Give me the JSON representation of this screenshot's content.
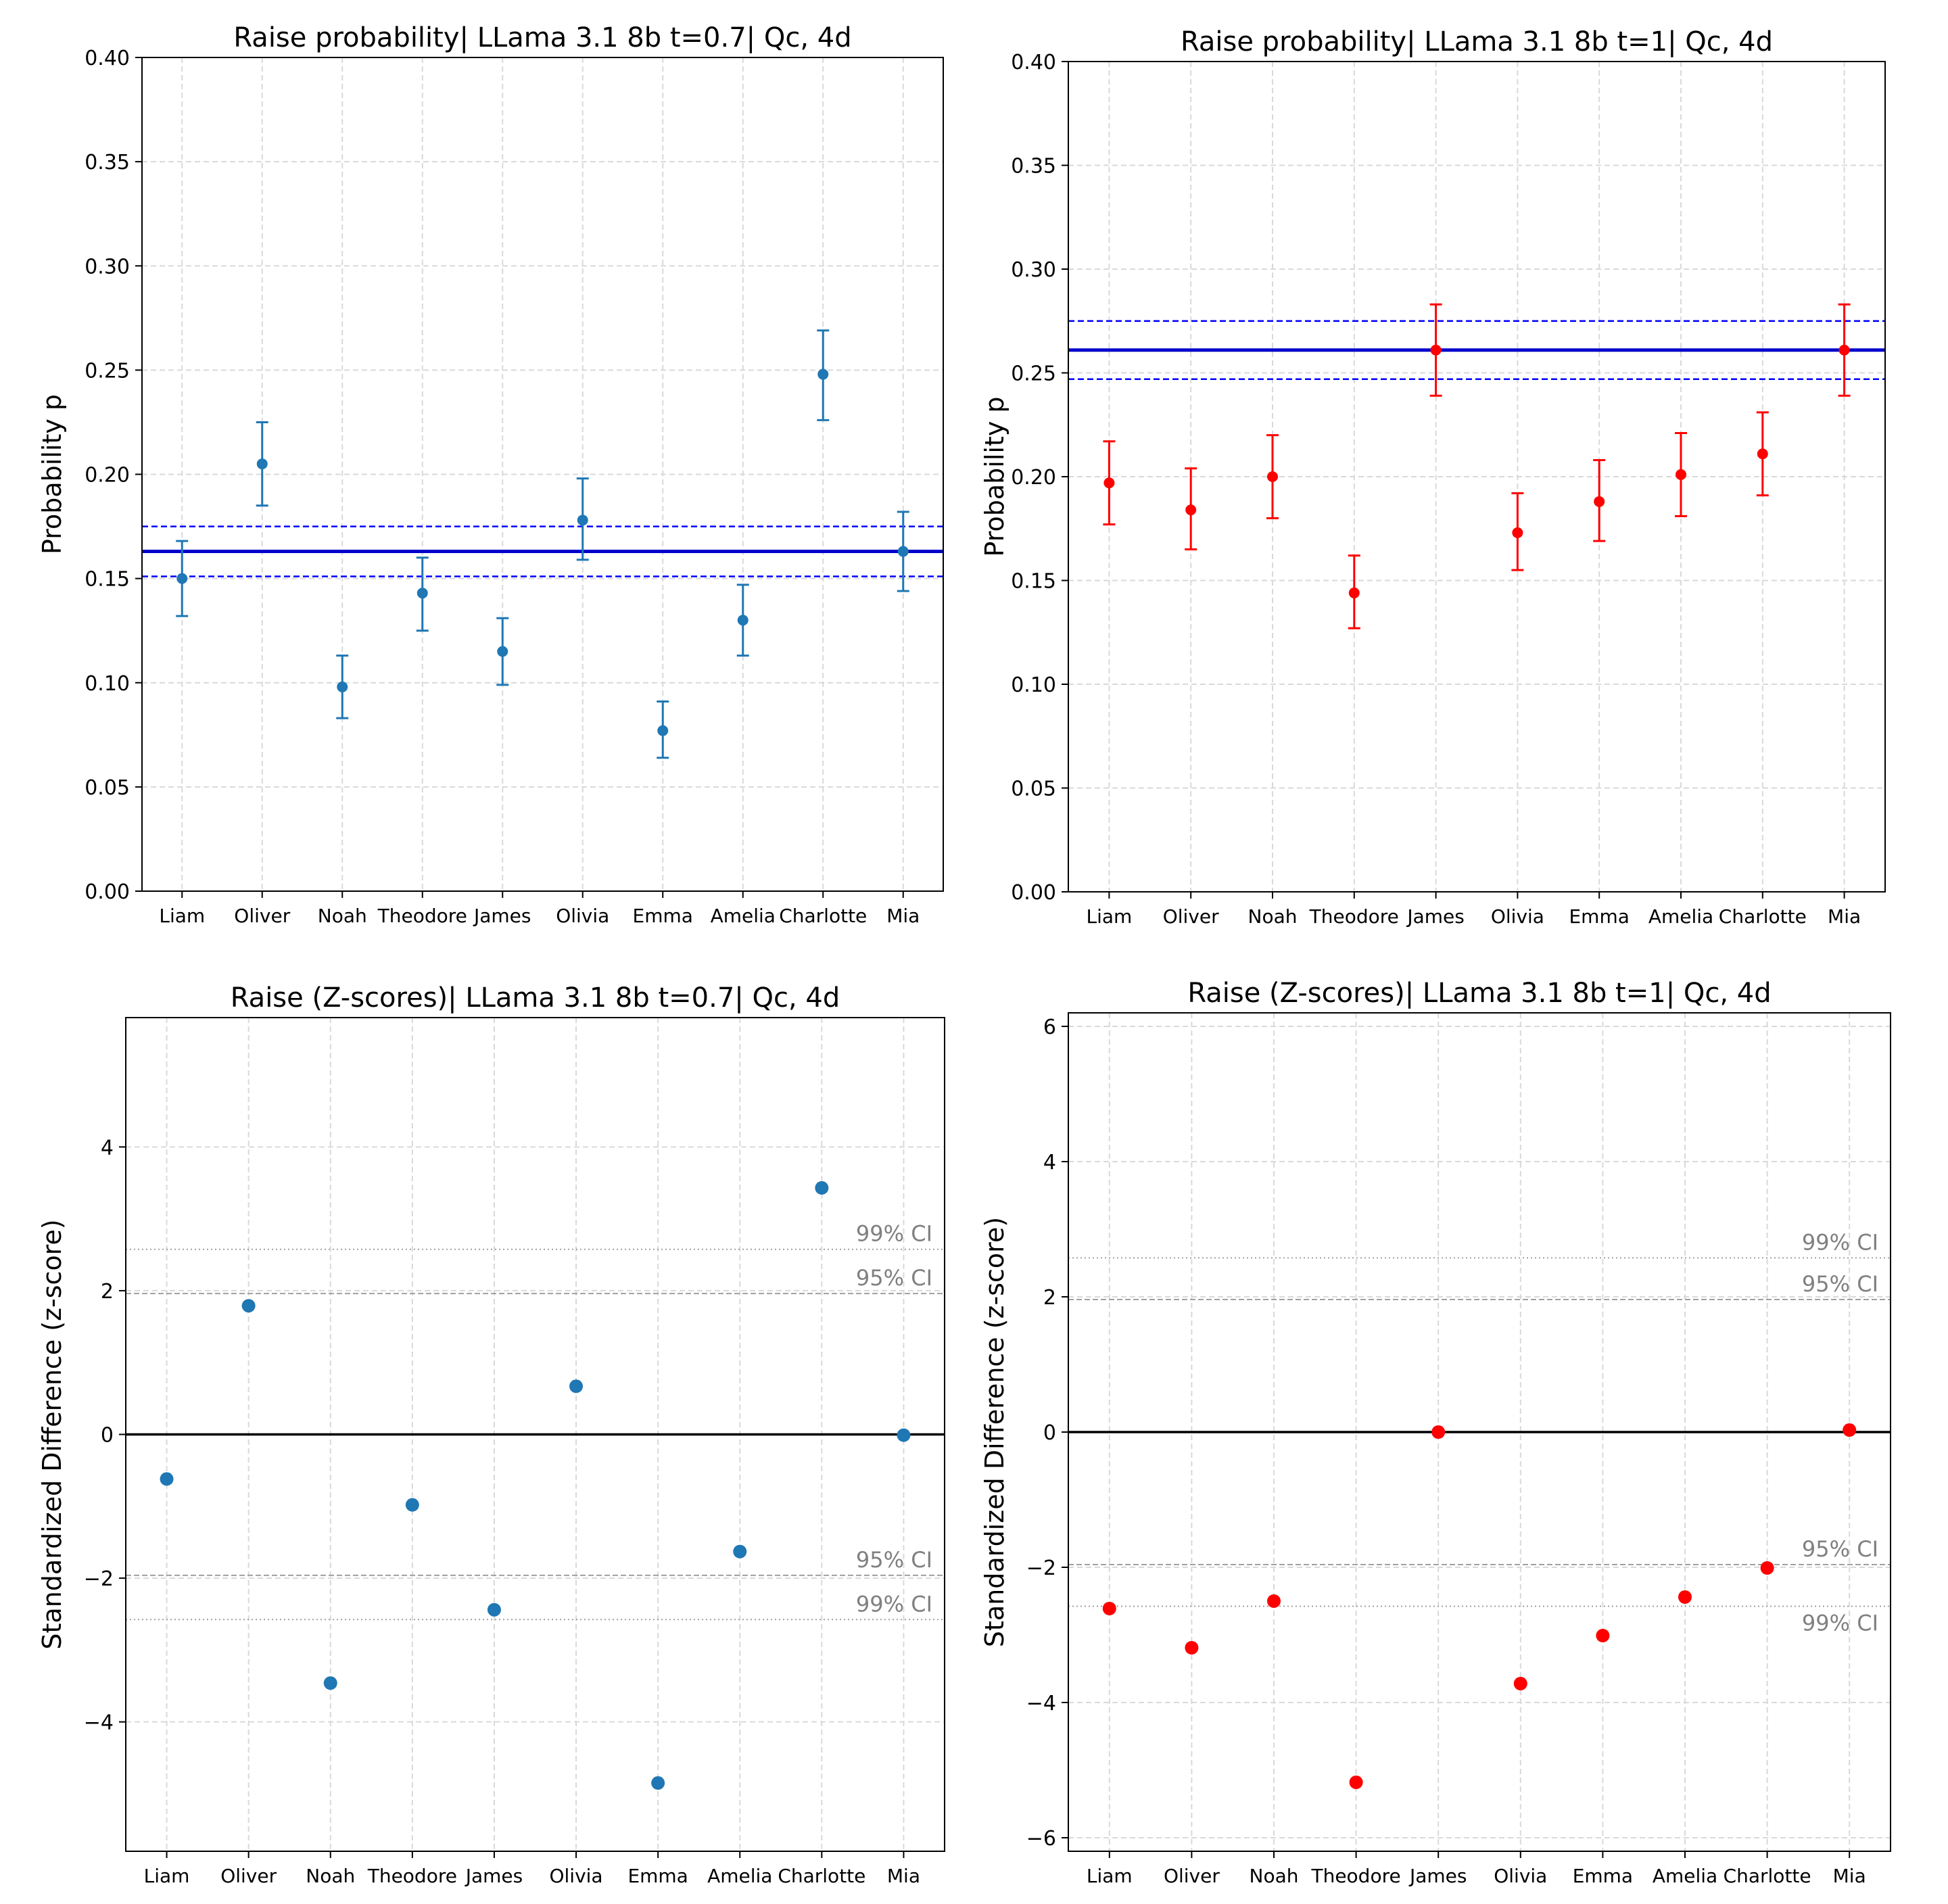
{
  "chart_data": [
    {
      "type": "scatter",
      "variant": "errorbar",
      "title": "Raise probability| LLama 3.1 8b t=0.7| Qc, 4d",
      "xlabel": "",
      "ylabel": "Probability p",
      "categories": [
        "Liam",
        "Oliver",
        "Noah",
        "Theodore",
        "James",
        "Olivia",
        "Emma",
        "Amelia",
        "Charlotte",
        "Mia"
      ],
      "values": [
        0.15,
        0.205,
        0.098,
        0.143,
        0.115,
        0.178,
        0.077,
        0.13,
        0.248,
        0.163
      ],
      "err_low": [
        0.132,
        0.185,
        0.083,
        0.125,
        0.099,
        0.159,
        0.064,
        0.113,
        0.226,
        0.144
      ],
      "err_high": [
        0.168,
        0.225,
        0.113,
        0.16,
        0.131,
        0.198,
        0.091,
        0.147,
        0.269,
        0.182
      ],
      "ylim": [
        0,
        0.4
      ],
      "yticks": [
        "0.00",
        "0.05",
        "0.10",
        "0.15",
        "0.20",
        "0.25",
        "0.30",
        "0.35",
        "0.40"
      ],
      "ytick_values": [
        0,
        0.05,
        0.1,
        0.15,
        0.2,
        0.25,
        0.3,
        0.35,
        0.4
      ],
      "reference_line": 0.163,
      "reference_band": [
        0.151,
        0.175
      ],
      "ci_labels": [],
      "color": "#1f77b4",
      "grid": true
    },
    {
      "type": "scatter",
      "variant": "errorbar",
      "title": "Raise probability| LLama 3.1 8b t=1| Qc, 4d",
      "xlabel": "",
      "ylabel": "Probability p",
      "categories": [
        "Liam",
        "Oliver",
        "Noah",
        "Theodore",
        "James",
        "Olivia",
        "Emma",
        "Amelia",
        "Charlotte",
        "Mia"
      ],
      "values": [
        0.197,
        0.184,
        0.2,
        0.144,
        0.261,
        0.173,
        0.188,
        0.201,
        0.211,
        0.261
      ],
      "err_low": [
        0.177,
        0.165,
        0.18,
        0.127,
        0.239,
        0.155,
        0.169,
        0.181,
        0.191,
        0.239
      ],
      "err_high": [
        0.217,
        0.204,
        0.22,
        0.162,
        0.283,
        0.192,
        0.208,
        0.221,
        0.231,
        0.283
      ],
      "ylim": [
        0,
        0.4
      ],
      "yticks": [
        "0.00",
        "0.05",
        "0.10",
        "0.15",
        "0.20",
        "0.25",
        "0.30",
        "0.35",
        "0.40"
      ],
      "ytick_values": [
        0,
        0.05,
        0.1,
        0.15,
        0.2,
        0.25,
        0.3,
        0.35,
        0.4
      ],
      "reference_line": 0.261,
      "reference_band": [
        0.247,
        0.275
      ],
      "ci_labels": [],
      "color": "#ff0000",
      "grid": true
    },
    {
      "type": "scatter",
      "title": "Raise (Z-scores)| LLama 3.1 8b t=0.7| Qc, 4d",
      "xlabel": "",
      "ylabel": "Standardized Difference (z-score)",
      "categories": [
        "Liam",
        "Oliver",
        "Noah",
        "Theodore",
        "James",
        "Olivia",
        "Emma",
        "Amelia",
        "Charlotte",
        "Mia"
      ],
      "values": [
        -0.62,
        1.79,
        -3.46,
        -0.98,
        -2.44,
        0.67,
        -4.85,
        -1.63,
        3.43,
        -0.01
      ],
      "ylim": [
        -5.8,
        5.8
      ],
      "yticks": [
        "−4",
        "−2",
        "0",
        "2",
        "4"
      ],
      "ytick_values": [
        -4,
        -2,
        0,
        2,
        4
      ],
      "zero_line": 0,
      "ci_lines": [
        2.576,
        1.96,
        -1.96,
        -2.576
      ],
      "ci_labels": [
        {
          "text": "99% CI",
          "value": 2.576,
          "placement": "above"
        },
        {
          "text": "95% CI",
          "value": 1.96,
          "placement": "above"
        },
        {
          "text": "95% CI",
          "value": -1.96,
          "placement": "above"
        },
        {
          "text": "99% CI",
          "value": -2.576,
          "placement": "above"
        }
      ],
      "color": "#1f77b4",
      "grid": true
    },
    {
      "type": "scatter",
      "title": "Raise (Z-scores)| LLama 3.1 8b t=1| Qc, 4d",
      "xlabel": "",
      "ylabel": "Standardized Difference (z-score)",
      "categories": [
        "Liam",
        "Oliver",
        "Noah",
        "Theodore",
        "James",
        "Olivia",
        "Emma",
        "Amelia",
        "Charlotte",
        "Mia"
      ],
      "values": [
        -2.61,
        -3.19,
        -2.5,
        -5.18,
        0.0,
        -3.72,
        -3.01,
        -2.44,
        -2.01,
        0.03
      ],
      "ylim": [
        -6.2,
        6.2
      ],
      "yticks": [
        "−6",
        "−4",
        "−2",
        "0",
        "2",
        "4",
        "6"
      ],
      "ytick_values": [
        -6,
        -4,
        -2,
        0,
        2,
        4,
        6
      ],
      "zero_line": 0,
      "ci_lines": [
        2.576,
        1.96,
        -1.96,
        -2.576
      ],
      "ci_labels": [
        {
          "text": "99% CI",
          "value": 2.576,
          "placement": "above"
        },
        {
          "text": "95% CI",
          "value": 1.96,
          "placement": "above"
        },
        {
          "text": "95% CI",
          "value": -1.96,
          "placement": "above"
        },
        {
          "text": "99% CI",
          "value": -2.576,
          "placement": "below"
        }
      ],
      "color": "#ff0000",
      "grid": true
    }
  ]
}
